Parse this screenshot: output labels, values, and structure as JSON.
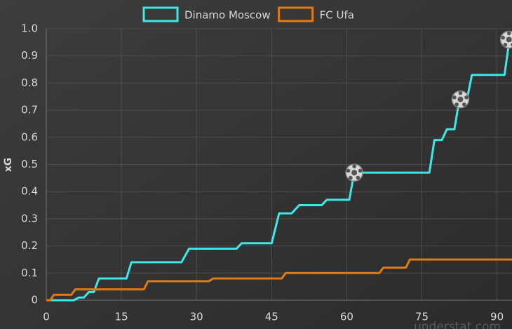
{
  "chart_data": {
    "type": "line",
    "y_label": "xG",
    "watermark": "understat.com",
    "xlim": [
      0,
      93
    ],
    "ylim": [
      0,
      1.0
    ],
    "xticks": [
      0,
      15,
      30,
      45,
      60,
      75,
      90
    ],
    "yticks": [
      0,
      0.1,
      0.2,
      0.3,
      0.4,
      0.5,
      0.6,
      0.7,
      0.8,
      0.9,
      {
        "value": 1.0,
        "label": "1.0"
      }
    ],
    "grid": true,
    "legend": "top",
    "series": [
      {
        "name": "Dinamo Moscow",
        "color": "#3ee8e8",
        "x": [
          0,
          5.5,
          6.5,
          7.5,
          8.5,
          9.5,
          10.5,
          16,
          17,
          27,
          28.5,
          38,
          39,
          45,
          46.5,
          49,
          50.5,
          55,
          56,
          60.5,
          61.5,
          76.5,
          77.5,
          79,
          80,
          81.5,
          82.5,
          84,
          85,
          91.5,
          92.5
        ],
        "values": [
          0,
          0,
          0.01,
          0.01,
          0.03,
          0.03,
          0.08,
          0.08,
          0.14,
          0.14,
          0.19,
          0.19,
          0.21,
          0.21,
          0.32,
          0.32,
          0.35,
          0.35,
          0.37,
          0.37,
          0.47,
          0.47,
          0.59,
          0.59,
          0.63,
          0.63,
          0.74,
          0.74,
          0.83,
          0.83,
          0.96
        ]
      },
      {
        "name": "FC Ufa",
        "color": "#e07b12",
        "x": [
          0,
          0.8,
          1.5,
          5,
          5.8,
          19.5,
          20.3,
          32.5,
          33.3,
          47,
          47.8,
          66.5,
          67.3,
          71.8,
          72.6,
          93
        ],
        "values": [
          0,
          0,
          0.02,
          0.02,
          0.04,
          0.04,
          0.07,
          0.07,
          0.08,
          0.08,
          0.1,
          0.1,
          0.12,
          0.12,
          0.15,
          0.15
        ]
      }
    ],
    "goals": {
      "x": [
        61.5,
        82.7,
        92.4
      ],
      "values": [
        0.47,
        0.74,
        0.96
      ]
    }
  }
}
